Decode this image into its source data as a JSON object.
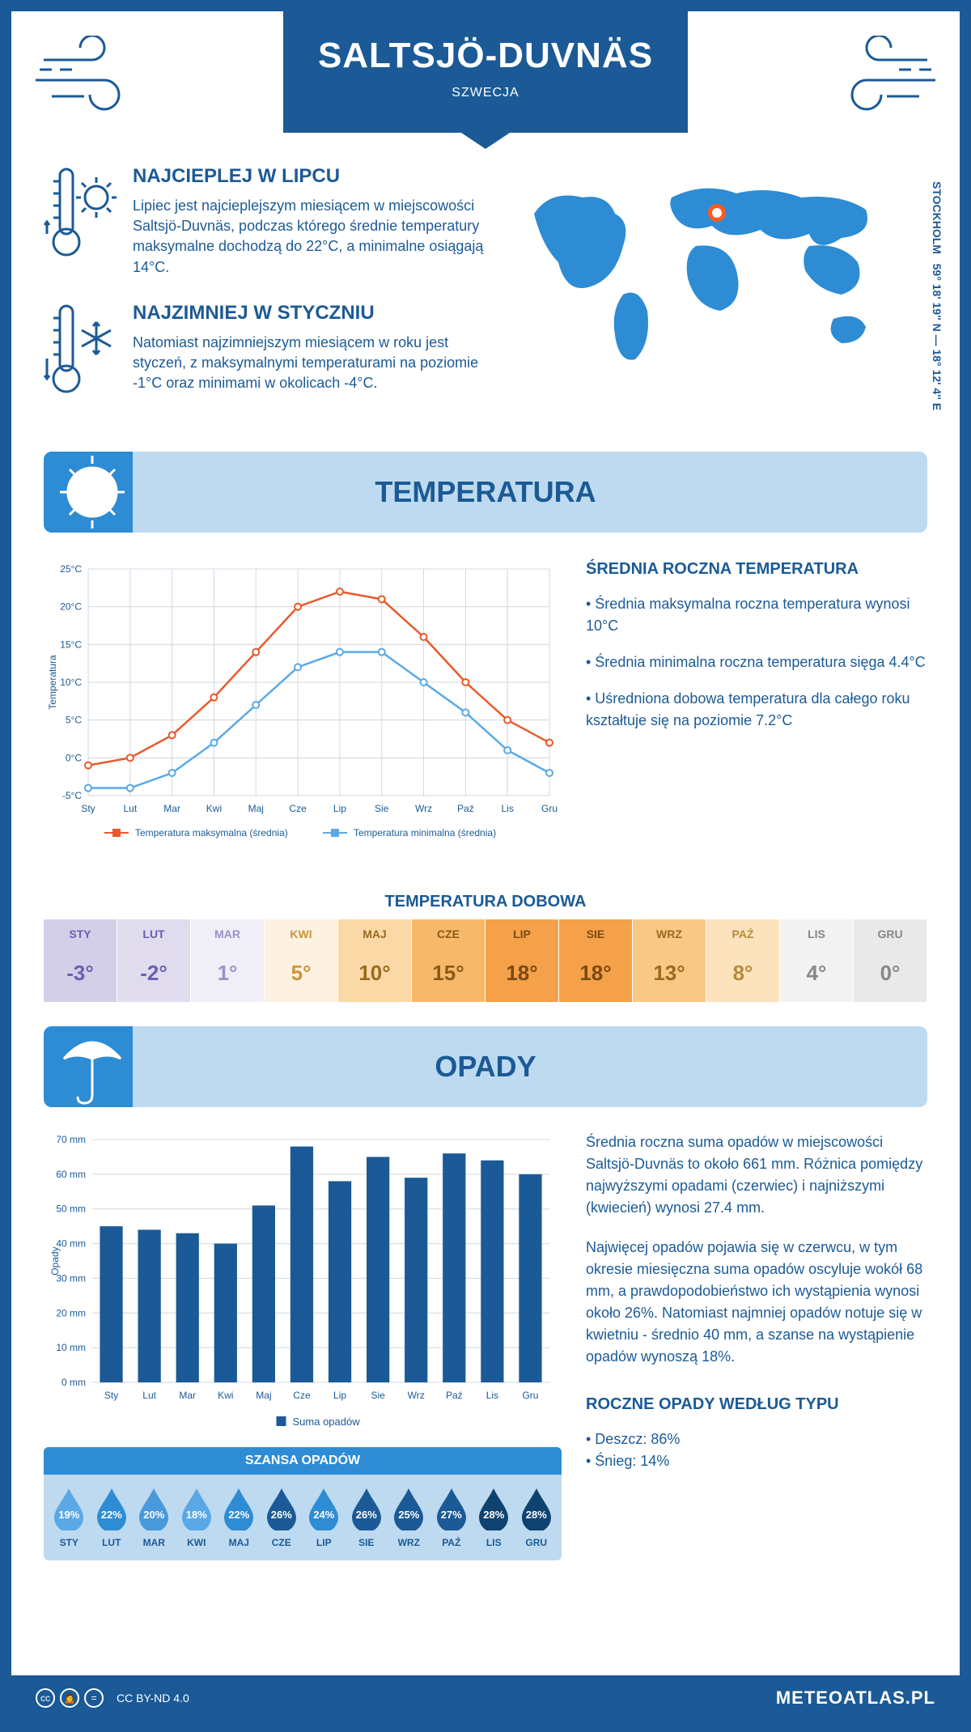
{
  "header": {
    "title": "SALTSJÖ-DUVNÄS",
    "subtitle": "SZWECJA",
    "coords_label": "STOCKHOLM",
    "coords": "59° 18' 19'' N — 18° 12' 4'' E"
  },
  "intro": {
    "warm": {
      "heading": "NAJCIEPLEJ W LIPCU",
      "body": "Lipiec jest najcieplejszym miesiącem w miejscowości Saltsjö-Duvnäs, podczas którego średnie temperatury maksymalne dochodzą do 22°C, a minimalne osiągają 14°C."
    },
    "cold": {
      "heading": "NAJZIMNIEJ W STYCZNIU",
      "body": "Natomiast najzimniejszym miesiącem w roku jest styczeń, z maksymalnymi temperaturami na poziomie -1°C oraz minimami w okolicach -4°C."
    }
  },
  "months_short": [
    "Sty",
    "Lut",
    "Mar",
    "Kwi",
    "Maj",
    "Cze",
    "Lip",
    "Sie",
    "Wrz",
    "Paź",
    "Lis",
    "Gru"
  ],
  "months_upper": [
    "STY",
    "LUT",
    "MAR",
    "KWI",
    "MAJ",
    "CZE",
    "LIP",
    "SIE",
    "WRZ",
    "PAŹ",
    "LIS",
    "GRU"
  ],
  "temperature": {
    "section_title": "TEMPERATURA",
    "chart": {
      "type": "line",
      "y_label": "Temperatura",
      "y_min": -5,
      "y_max": 25,
      "y_step": 5,
      "series": [
        {
          "name": "Temperatura maksymalna (średnia)",
          "color": "#e85a2a",
          "marker": "circle",
          "values": [
            -1,
            0,
            3,
            8,
            14,
            20,
            22,
            21,
            16,
            10,
            5,
            2
          ]
        },
        {
          "name": "Temperatura minimalna (średnia)",
          "color": "#5aa9e6",
          "marker": "circle",
          "values": [
            -4,
            -4,
            -2,
            2,
            7,
            12,
            14,
            14,
            10,
            6,
            1,
            -2
          ]
        }
      ],
      "grid_color": "#d0d8e0",
      "background_color": "#ffffff"
    },
    "summary": {
      "heading": "ŚREDNIA ROCZNA TEMPERATURA",
      "bullets": [
        "• Średnia maksymalna roczna temperatura wynosi 10°C",
        "• Średnia minimalna roczna temperatura sięga 4.4°C",
        "• Uśredniona dobowa temperatura dla całego roku kształtuje się na poziomie 7.2°C"
      ]
    },
    "daily": {
      "heading": "TEMPERATURA DOBOWA",
      "values": [
        "-3°",
        "-2°",
        "1°",
        "5°",
        "10°",
        "15°",
        "18°",
        "18°",
        "13°",
        "8°",
        "4°",
        "0°"
      ],
      "cell_bg": [
        "#d4cfe8",
        "#e0dcee",
        "#f0eef6",
        "#fdf1e1",
        "#fbd9a6",
        "#f7b86a",
        "#f5a14a",
        "#f5a14a",
        "#f9c885",
        "#fde2be",
        "#f2f2f2",
        "#e9e9e9"
      ],
      "cell_fg": [
        "#6a5fb0",
        "#6a5fb0",
        "#9a91c9",
        "#c9963a",
        "#9a6a1f",
        "#8a5a16",
        "#7a4a10",
        "#7a4a10",
        "#9a6a1f",
        "#b98a3a",
        "#888888",
        "#888888"
      ]
    }
  },
  "precip": {
    "section_title": "OPADY",
    "chart": {
      "type": "bar",
      "y_label": "Opady",
      "y_min": 0,
      "y_max": 70,
      "y_step": 10,
      "values": [
        45,
        44,
        43,
        40,
        51,
        68,
        58,
        65,
        59,
        66,
        64,
        60
      ],
      "bar_color": "#1b5a96",
      "grid_color": "#d0d8e0",
      "legend": "Suma opadów"
    },
    "summary": {
      "p1": "Średnia roczna suma opadów w miejscowości Saltsjö-Duvnäs to około 661 mm. Różnica pomiędzy najwyższymi opadami (czerwiec) i najniższymi (kwiecień) wynosi 27.4 mm.",
      "p2": "Najwięcej opadów pojawia się w czerwcu, w tym okresie miesięczna suma opadów oscyluje wokół 68 mm, a prawdopodobieństwo ich wystąpienia wynosi około 26%. Natomiast najmniej opadów notuje się w kwietniu - średnio 40 mm, a szanse na wystąpienie opadów wynoszą 18%."
    },
    "chance": {
      "heading": "SZANSA OPADÓW",
      "values": [
        "19%",
        "22%",
        "20%",
        "18%",
        "22%",
        "26%",
        "24%",
        "26%",
        "25%",
        "27%",
        "28%",
        "28%"
      ],
      "fill": [
        "#5aa9e6",
        "#2d8cd4",
        "#4a99da",
        "#5aa9e6",
        "#2d8cd4",
        "#1b5a96",
        "#2d8cd4",
        "#1b5a96",
        "#1b5a96",
        "#1b5a96",
        "#0e4270",
        "#0e4270"
      ]
    },
    "by_type": {
      "heading": "ROCZNE OPADY WEDŁUG TYPU",
      "bullets": [
        "• Deszcz: 86%",
        "• Śnieg: 14%"
      ]
    }
  },
  "footer": {
    "license": "CC BY-ND 4.0",
    "site": "METEOATLAS.PL"
  },
  "colors": {
    "primary": "#1b5a96",
    "light_blue": "#bedaf0",
    "mid_blue": "#2d8cd4"
  }
}
